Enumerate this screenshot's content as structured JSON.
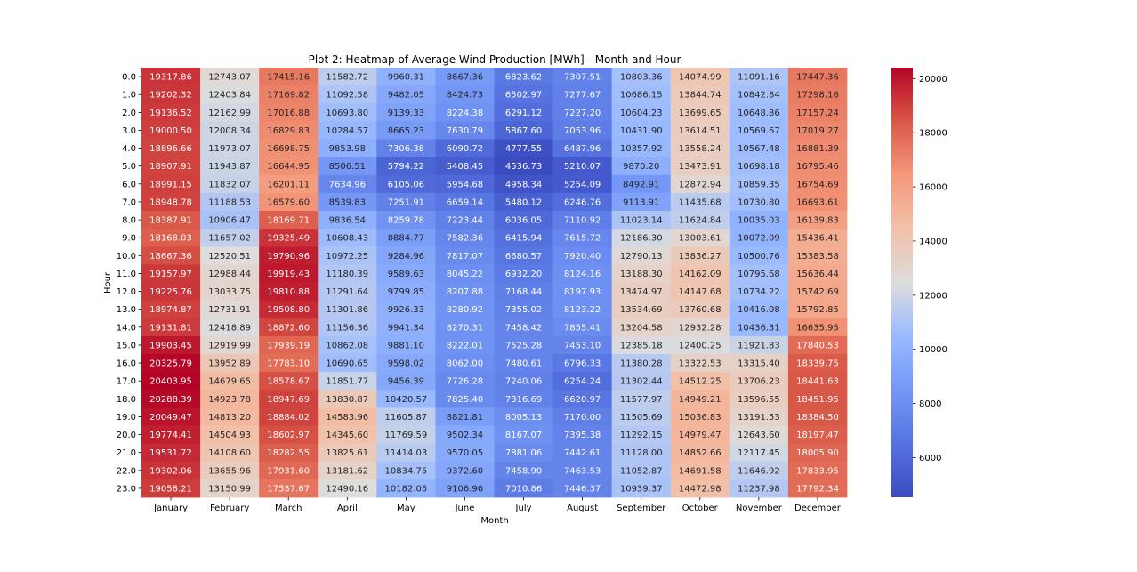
{
  "chart_data": {
    "type": "heatmap",
    "title": "Plot 2: Heatmap of Average Wind Production [MWh] - Month and Hour",
    "xlabel": "Month",
    "ylabel": "Hour",
    "x": [
      "January",
      "February",
      "March",
      "April",
      "May",
      "June",
      "July",
      "August",
      "September",
      "October",
      "November",
      "December"
    ],
    "y": [
      "0.0",
      "1.0",
      "2.0",
      "3.0",
      "4.0",
      "5.0",
      "6.0",
      "7.0",
      "8.0",
      "9.0",
      "10.0",
      "11.0",
      "12.0",
      "13.0",
      "14.0",
      "15.0",
      "16.0",
      "17.0",
      "18.0",
      "19.0",
      "20.0",
      "21.0",
      "22.0",
      "23.0"
    ],
    "values": [
      [
        "19317.86",
        "12743.07",
        "17415.16",
        "11582.72",
        "9960.31",
        "8667.36",
        "6823.62",
        "7307.51",
        "10803.36",
        "14074.99",
        "11091.16",
        "17447.36"
      ],
      [
        "19202.32",
        "12403.84",
        "17169.82",
        "11092.58",
        "9482.05",
        "8424.73",
        "6502.97",
        "7277.67",
        "10686.15",
        "13844.74",
        "10842.84",
        "17298.16"
      ],
      [
        "19136.52",
        "12162.99",
        "17016.88",
        "10693.80",
        "9139.33",
        "8224.38",
        "6291.12",
        "7227.20",
        "10604.23",
        "13699.65",
        "10648.86",
        "17157.24"
      ],
      [
        "19000.50",
        "12008.34",
        "16829.83",
        "10284.57",
        "8665.23",
        "7630.79",
        "5867.60",
        "7053.96",
        "10431.90",
        "13614.51",
        "10569.67",
        "17019.27"
      ],
      [
        "18896.66",
        "11973.07",
        "16698.75",
        "9853.98",
        "7306.38",
        "6090.72",
        "4777.55",
        "6487.96",
        "10357.92",
        "13558.24",
        "10567.48",
        "16881.39"
      ],
      [
        "18907.91",
        "11943.87",
        "16644.95",
        "8506.51",
        "5794.22",
        "5408.45",
        "4536.73",
        "5210.07",
        "9870.20",
        "13473.91",
        "10698.18",
        "16795.46"
      ],
      [
        "18991.15",
        "11832.07",
        "16201.11",
        "7634.96",
        "6105.06",
        "5954.68",
        "4958.34",
        "5254.09",
        "8492.91",
        "12872.94",
        "10859.35",
        "16754.69"
      ],
      [
        "18948.78",
        "11188.53",
        "16579.60",
        "8539.83",
        "7251.91",
        "6659.14",
        "5480.12",
        "6246.76",
        "9113.91",
        "11435.68",
        "10730.80",
        "16693.61"
      ],
      [
        "18387.91",
        "10906.47",
        "18169.71",
        "9836.54",
        "8259.78",
        "7223.44",
        "6036.05",
        "7110.92",
        "11023.14",
        "11624.84",
        "10035.03",
        "16139.83"
      ],
      [
        "18168.03",
        "11657.02",
        "19325.49",
        "10608.43",
        "8884.77",
        "7582.36",
        "6415.94",
        "7615.72",
        "12186.30",
        "13003.61",
        "10072.09",
        "15436.41"
      ],
      [
        "18667.36",
        "12520.51",
        "19790.96",
        "10972.25",
        "9284.96",
        "7817.07",
        "6680.57",
        "7920.40",
        "12790.13",
        "13836.27",
        "10500.76",
        "15383.58"
      ],
      [
        "19157.97",
        "12988.44",
        "19919.43",
        "11180.39",
        "9589.63",
        "8045.22",
        "6932.20",
        "8124.16",
        "13188.30",
        "14162.09",
        "10795.68",
        "15636.44"
      ],
      [
        "19225.76",
        "13033.75",
        "19810.88",
        "11291.64",
        "9799.85",
        "8207.88",
        "7168.44",
        "8197.93",
        "13474.97",
        "14147.68",
        "10734.22",
        "15742.69"
      ],
      [
        "18974.87",
        "12731.91",
        "19508.80",
        "11301.86",
        "9926.33",
        "8280.92",
        "7355.02",
        "8123.22",
        "13534.69",
        "13760.68",
        "10416.08",
        "15792.85"
      ],
      [
        "19131.81",
        "12418.89",
        "18872.60",
        "11156.36",
        "9941.34",
        "8270.31",
        "7458.42",
        "7855.41",
        "13204.58",
        "12932.28",
        "10436.31",
        "16635.95"
      ],
      [
        "19903.45",
        "12919.99",
        "17939.19",
        "10862.08",
        "9881.10",
        "8222.01",
        "7525.28",
        "7453.10",
        "12385.18",
        "12400.25",
        "11921.83",
        "17840.53"
      ],
      [
        "20325.79",
        "13952.89",
        "17783.10",
        "10690.65",
        "9598.02",
        "8062.00",
        "7480.61",
        "6796.33",
        "11380.28",
        "13322.53",
        "13315.40",
        "18339.75"
      ],
      [
        "20403.95",
        "14679.65",
        "18578.67",
        "11851.77",
        "9456.39",
        "7726.28",
        "7240.06",
        "6254.24",
        "11302.44",
        "14512.25",
        "13706.23",
        "18441.63"
      ],
      [
        "20288.39",
        "14923.78",
        "18947.69",
        "13830.87",
        "10420.57",
        "7825.40",
        "7316.69",
        "6620.97",
        "11577.97",
        "14949.21",
        "13596.55",
        "18451.95"
      ],
      [
        "20049.47",
        "14813.20",
        "18884.02",
        "14583.96",
        "11605.87",
        "8821.81",
        "8005.13",
        "7170.00",
        "11505.69",
        "15036.83",
        "13191.53",
        "18384.50"
      ],
      [
        "19774.41",
        "14504.93",
        "18602.97",
        "14345.60",
        "11769.59",
        "9502.34",
        "8167.07",
        "7395.38",
        "11292.15",
        "14979.47",
        "12643.60",
        "18197.47"
      ],
      [
        "19531.72",
        "14108.60",
        "18282.55",
        "13825.61",
        "11414.03",
        "9570.05",
        "7881.06",
        "7442.61",
        "11128.00",
        "14852.66",
        "12117.45",
        "18005.90"
      ],
      [
        "19302.06",
        "13655.96",
        "17931.60",
        "13181.62",
        "10834.75",
        "9372.60",
        "7458.90",
        "7463.53",
        "11052.87",
        "14691.58",
        "11646.92",
        "17833.95"
      ],
      [
        "19058.21",
        "13150.99",
        "17537.67",
        "12490.16",
        "10182.05",
        "9106.96",
        "7010.86",
        "7446.37",
        "10939.37",
        "14472.98",
        "11237.98",
        "17792.34"
      ]
    ],
    "colormap": "coolwarm",
    "vmin": 4536.73,
    "vmax": 20403.95,
    "colorbar_ticks": [
      "6000",
      "8000",
      "10000",
      "12000",
      "14000",
      "16000",
      "18000",
      "20000"
    ],
    "colors": {
      "low": "#3b4cc0",
      "mid": "#dddddd",
      "high": "#b40426"
    }
  }
}
